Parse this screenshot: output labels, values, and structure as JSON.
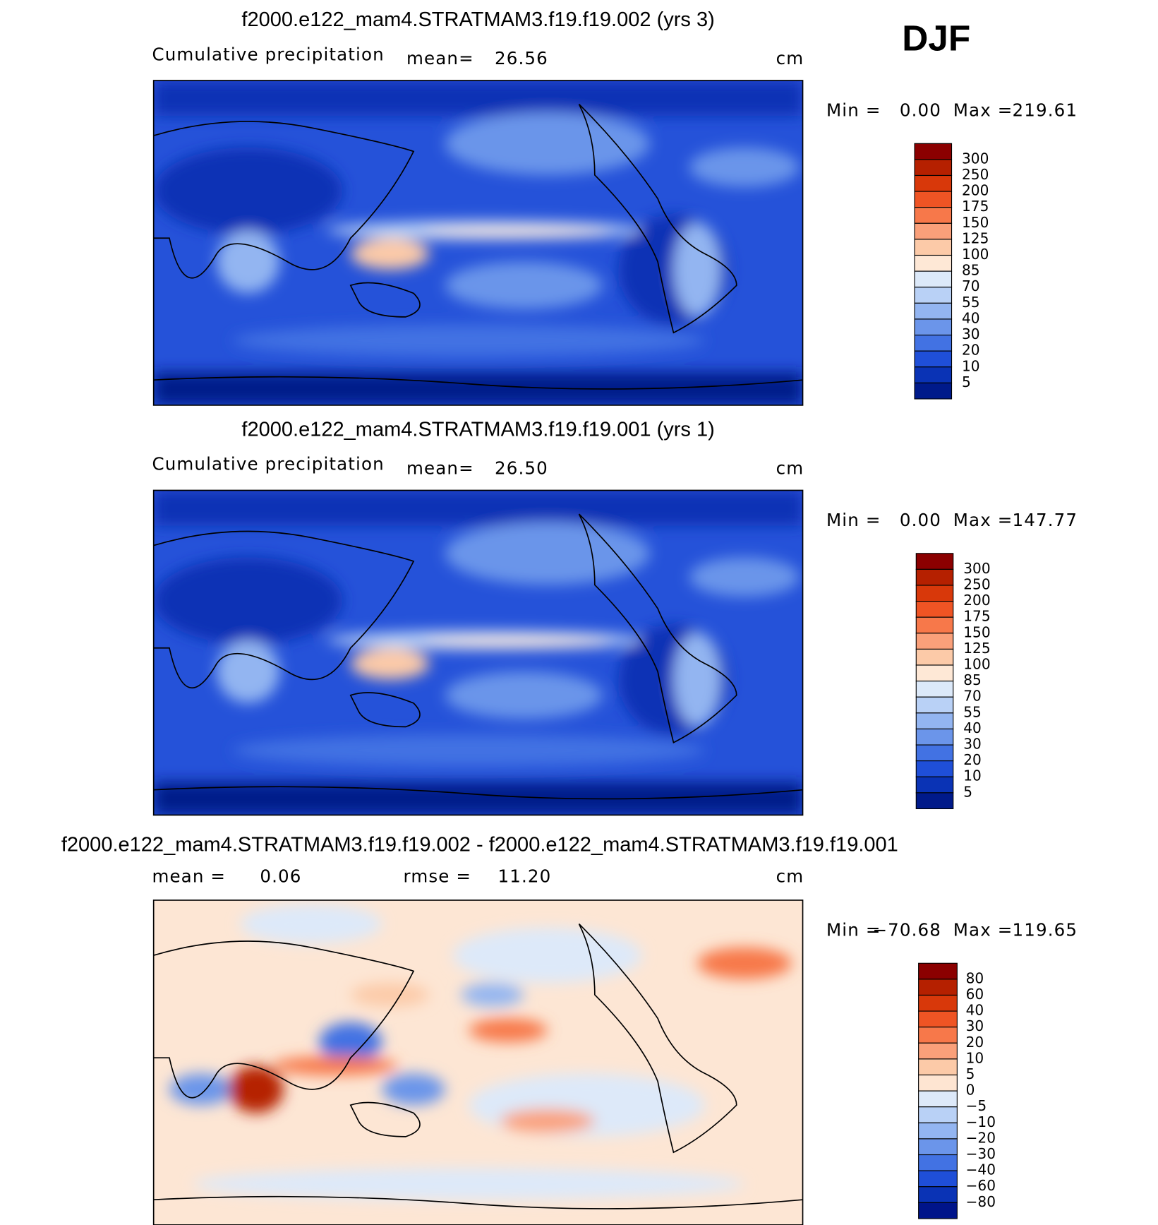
{
  "label": "DJF",
  "panels": [
    {
      "title": "f2000.e122_mam4.STRATMAM3.f19.f19.002 (yrs 3)",
      "field": "Cumulative precipitation",
      "mean_label": "mean=",
      "mean": "26.56",
      "units": "cm",
      "min_label": "Min =",
      "min": "0.00",
      "max_label": "Max =",
      "max": "219.61",
      "colorbar": {
        "levels": [
          "300",
          "250",
          "200",
          "175",
          "150",
          "125",
          "100",
          "85",
          "70",
          "55",
          "40",
          "30",
          "20",
          "10",
          "5"
        ],
        "colors": [
          "#8b0000",
          "#b52000",
          "#d8380a",
          "#ef5424",
          "#f7784a",
          "#faa07a",
          "#fccaa8",
          "#fee8d6",
          "#dce9f9",
          "#b9d1f6",
          "#93b5f1",
          "#6b95ea",
          "#4272e3",
          "#1f4fd8",
          "#0a33b5",
          "#001a8a"
        ]
      }
    },
    {
      "title": "f2000.e122_mam4.STRATMAM3.f19.f19.001 (yrs 1)",
      "field": "Cumulative precipitation",
      "mean_label": "mean=",
      "mean": "26.50",
      "units": "cm",
      "min_label": "Min =",
      "min": "0.00",
      "max_label": "Max =",
      "max": "147.77",
      "colorbar": {
        "levels": [
          "300",
          "250",
          "200",
          "175",
          "150",
          "125",
          "100",
          "85",
          "70",
          "55",
          "40",
          "30",
          "20",
          "10",
          "5"
        ],
        "colors": [
          "#8b0000",
          "#b52000",
          "#d8380a",
          "#ef5424",
          "#f7784a",
          "#faa07a",
          "#fccaa8",
          "#fee8d6",
          "#dce9f9",
          "#b9d1f6",
          "#93b5f1",
          "#6b95ea",
          "#4272e3",
          "#1f4fd8",
          "#0a33b5",
          "#001a8a"
        ]
      }
    },
    {
      "title": "f2000.e122_mam4.STRATMAM3.f19.f19.002 - f2000.e122_mam4.STRATMAM3.f19.f19.001",
      "mean_label": "mean =",
      "mean": "0.06",
      "rmse_label": "rmse =",
      "rmse": "11.20",
      "units": "cm",
      "min_label": "Min =",
      "min": "−70.68",
      "max_label": "Max =",
      "max": "119.65",
      "colorbar": {
        "levels": [
          "80",
          "60",
          "40",
          "30",
          "20",
          "10",
          "5",
          "0",
          "−5",
          "−10",
          "−20",
          "−30",
          "−40",
          "−60",
          "−80"
        ],
        "colors": [
          "#8b0000",
          "#b52000",
          "#d8380a",
          "#ef5424",
          "#f7784a",
          "#faa07a",
          "#fccaa8",
          "#fee5d2",
          "#dde9f9",
          "#b9d1f6",
          "#93b5f1",
          "#6b95ea",
          "#4272e3",
          "#1f4fd8",
          "#0a33b5",
          "#00148a"
        ]
      }
    }
  ]
}
